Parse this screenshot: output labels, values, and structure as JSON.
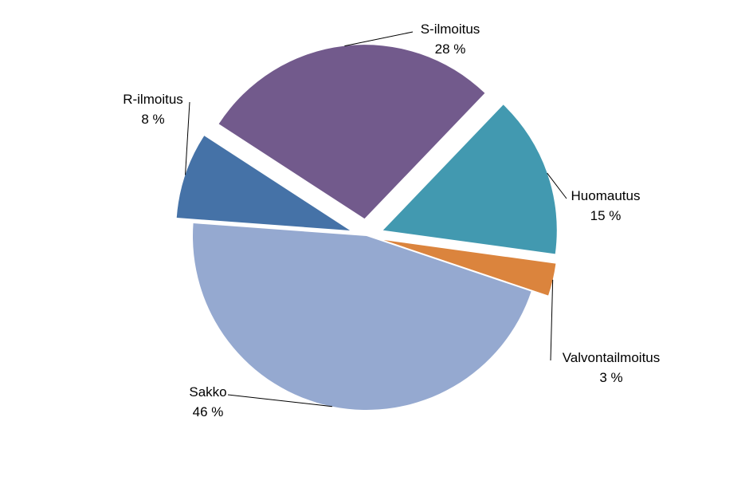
{
  "chart_data": {
    "type": "pie",
    "title": "",
    "legend": "none",
    "slices": [
      {
        "label": "S-ilmoitus",
        "value_label": "28 %",
        "value": 28,
        "color": "#725A8C"
      },
      {
        "label": "Huomautus",
        "value_label": "15 %",
        "value": 15,
        "color": "#4299B0"
      },
      {
        "label": "Valvontailmoitus",
        "value_label": "3 %",
        "value": 3,
        "color": "#DB843D"
      },
      {
        "label": "Sakko",
        "value_label": "46 %",
        "value": 46,
        "color": "#95A9D0"
      },
      {
        "label": "R-ilmoitus",
        "value_label": "8 %",
        "value": 8,
        "color": "#4572A7"
      }
    ]
  }
}
